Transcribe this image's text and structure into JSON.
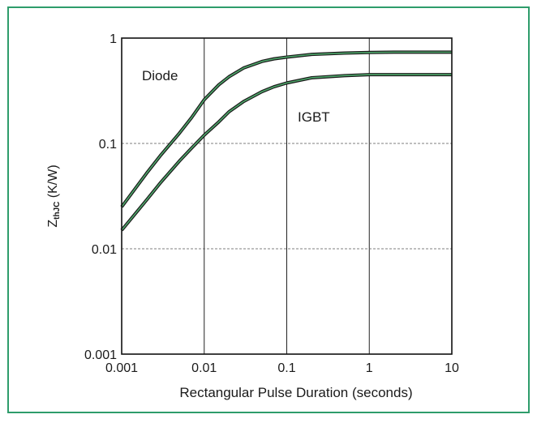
{
  "chart_data": {
    "type": "line",
    "x_scale": "log",
    "y_scale": "log",
    "xlim": [
      0.001,
      10
    ],
    "ylim": [
      0.001,
      1
    ],
    "xlabel": "Rectangular Pulse Duration (seconds)",
    "ylabel": {
      "main": "Z",
      "subscript": "thJC",
      "unit": " (K/W)"
    },
    "x_ticks": [
      {
        "value": 0.001,
        "label": "0.001"
      },
      {
        "value": 0.01,
        "label": "0.01"
      },
      {
        "value": 0.1,
        "label": "0.1"
      },
      {
        "value": 1,
        "label": "1"
      },
      {
        "value": 10,
        "label": "10"
      }
    ],
    "y_ticks": [
      {
        "value": 0.001,
        "label": "0.001"
      },
      {
        "value": 0.01,
        "label": "0.01"
      },
      {
        "value": 0.1,
        "label": "0.1"
      },
      {
        "value": 1,
        "label": "1"
      }
    ],
    "grid": {
      "vertical": "solid",
      "horizontal": "dashed"
    },
    "series": [
      {
        "name": "Diode",
        "x": [
          0.001,
          0.002,
          0.003,
          0.005,
          0.007,
          0.01,
          0.015,
          0.02,
          0.03,
          0.05,
          0.07,
          0.1,
          0.2,
          0.5,
          1,
          2,
          5,
          10
        ],
        "y": [
          0.025,
          0.052,
          0.078,
          0.125,
          0.175,
          0.26,
          0.36,
          0.43,
          0.52,
          0.6,
          0.635,
          0.66,
          0.7,
          0.72,
          0.73,
          0.735,
          0.735,
          0.735
        ]
      },
      {
        "name": "IGBT",
        "x": [
          0.001,
          0.002,
          0.003,
          0.005,
          0.007,
          0.01,
          0.015,
          0.02,
          0.03,
          0.05,
          0.07,
          0.1,
          0.2,
          0.5,
          1,
          2,
          5,
          10
        ],
        "y": [
          0.015,
          0.029,
          0.043,
          0.068,
          0.09,
          0.12,
          0.16,
          0.2,
          0.25,
          0.31,
          0.345,
          0.375,
          0.42,
          0.44,
          0.45,
          0.45,
          0.45,
          0.45
        ]
      }
    ],
    "series_colors": {
      "outer": "#1a1a1a",
      "inner": "#4ea86b"
    },
    "frame_color": "#2e9c6b"
  }
}
